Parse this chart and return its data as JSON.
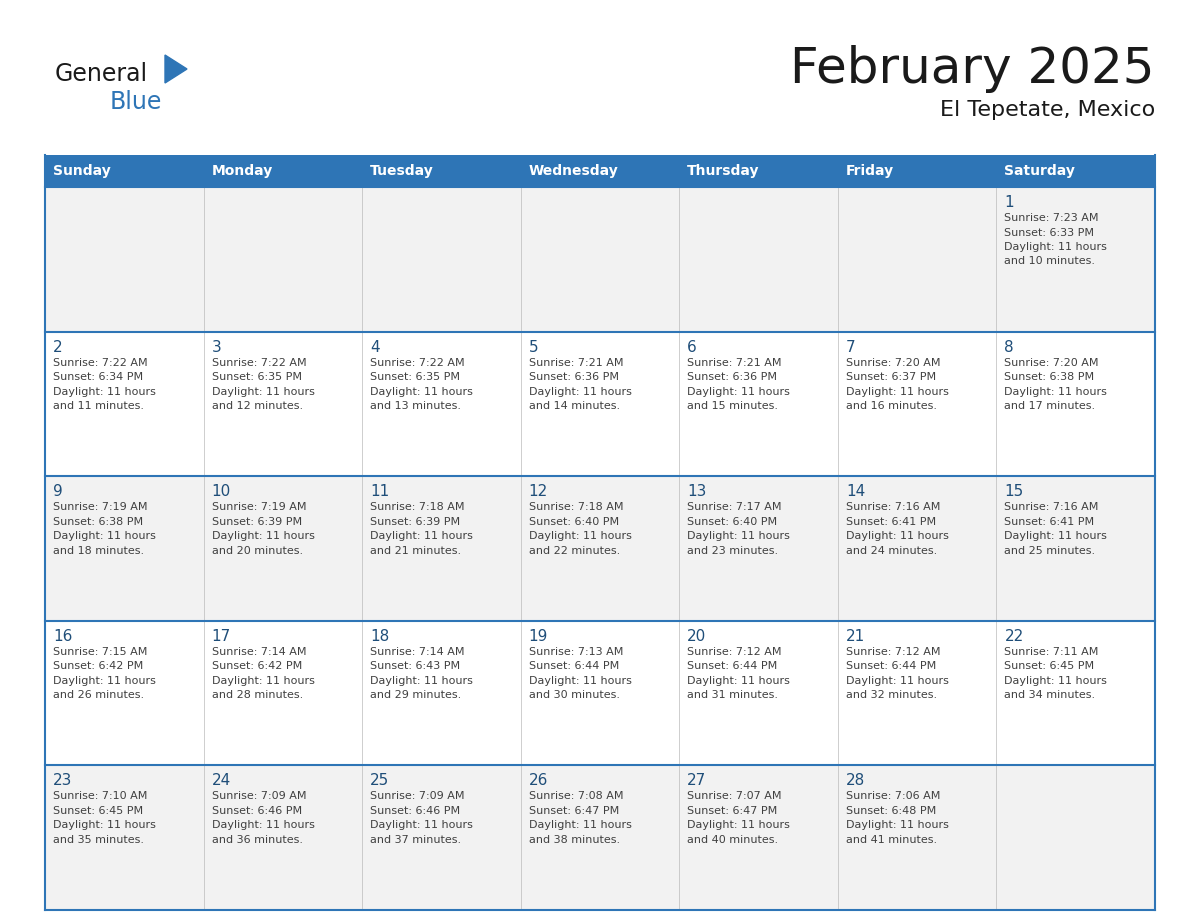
{
  "title": "February 2025",
  "subtitle": "El Tepetate, Mexico",
  "header_bg_color": "#2E75B6",
  "header_text_color": "#FFFFFF",
  "cell_border_color": "#2E75B6",
  "day_number_color": "#1F4E79",
  "text_color": "#404040",
  "bg_color": "#FFFFFF",
  "row0_bg": "#F2F2F2",
  "row_odd_bg": "#FFFFFF",
  "row_even_bg": "#F2F2F2",
  "days_of_week": [
    "Sunday",
    "Monday",
    "Tuesday",
    "Wednesday",
    "Thursday",
    "Friday",
    "Saturday"
  ],
  "calendar_data": [
    [
      null,
      null,
      null,
      null,
      null,
      null,
      {
        "day": 1,
        "sunrise": "7:23 AM",
        "sunset": "6:33 PM",
        "daylight": "11 hours\nand 10 minutes."
      }
    ],
    [
      {
        "day": 2,
        "sunrise": "7:22 AM",
        "sunset": "6:34 PM",
        "daylight": "11 hours\nand 11 minutes."
      },
      {
        "day": 3,
        "sunrise": "7:22 AM",
        "sunset": "6:35 PM",
        "daylight": "11 hours\nand 12 minutes."
      },
      {
        "day": 4,
        "sunrise": "7:22 AM",
        "sunset": "6:35 PM",
        "daylight": "11 hours\nand 13 minutes."
      },
      {
        "day": 5,
        "sunrise": "7:21 AM",
        "sunset": "6:36 PM",
        "daylight": "11 hours\nand 14 minutes."
      },
      {
        "day": 6,
        "sunrise": "7:21 AM",
        "sunset": "6:36 PM",
        "daylight": "11 hours\nand 15 minutes."
      },
      {
        "day": 7,
        "sunrise": "7:20 AM",
        "sunset": "6:37 PM",
        "daylight": "11 hours\nand 16 minutes."
      },
      {
        "day": 8,
        "sunrise": "7:20 AM",
        "sunset": "6:38 PM",
        "daylight": "11 hours\nand 17 minutes."
      }
    ],
    [
      {
        "day": 9,
        "sunrise": "7:19 AM",
        "sunset": "6:38 PM",
        "daylight": "11 hours\nand 18 minutes."
      },
      {
        "day": 10,
        "sunrise": "7:19 AM",
        "sunset": "6:39 PM",
        "daylight": "11 hours\nand 20 minutes."
      },
      {
        "day": 11,
        "sunrise": "7:18 AM",
        "sunset": "6:39 PM",
        "daylight": "11 hours\nand 21 minutes."
      },
      {
        "day": 12,
        "sunrise": "7:18 AM",
        "sunset": "6:40 PM",
        "daylight": "11 hours\nand 22 minutes."
      },
      {
        "day": 13,
        "sunrise": "7:17 AM",
        "sunset": "6:40 PM",
        "daylight": "11 hours\nand 23 minutes."
      },
      {
        "day": 14,
        "sunrise": "7:16 AM",
        "sunset": "6:41 PM",
        "daylight": "11 hours\nand 24 minutes."
      },
      {
        "day": 15,
        "sunrise": "7:16 AM",
        "sunset": "6:41 PM",
        "daylight": "11 hours\nand 25 minutes."
      }
    ],
    [
      {
        "day": 16,
        "sunrise": "7:15 AM",
        "sunset": "6:42 PM",
        "daylight": "11 hours\nand 26 minutes."
      },
      {
        "day": 17,
        "sunrise": "7:14 AM",
        "sunset": "6:42 PM",
        "daylight": "11 hours\nand 28 minutes."
      },
      {
        "day": 18,
        "sunrise": "7:14 AM",
        "sunset": "6:43 PM",
        "daylight": "11 hours\nand 29 minutes."
      },
      {
        "day": 19,
        "sunrise": "7:13 AM",
        "sunset": "6:44 PM",
        "daylight": "11 hours\nand 30 minutes."
      },
      {
        "day": 20,
        "sunrise": "7:12 AM",
        "sunset": "6:44 PM",
        "daylight": "11 hours\nand 31 minutes."
      },
      {
        "day": 21,
        "sunrise": "7:12 AM",
        "sunset": "6:44 PM",
        "daylight": "11 hours\nand 32 minutes."
      },
      {
        "day": 22,
        "sunrise": "7:11 AM",
        "sunset": "6:45 PM",
        "daylight": "11 hours\nand 34 minutes."
      }
    ],
    [
      {
        "day": 23,
        "sunrise": "7:10 AM",
        "sunset": "6:45 PM",
        "daylight": "11 hours\nand 35 minutes."
      },
      {
        "day": 24,
        "sunrise": "7:09 AM",
        "sunset": "6:46 PM",
        "daylight": "11 hours\nand 36 minutes."
      },
      {
        "day": 25,
        "sunrise": "7:09 AM",
        "sunset": "6:46 PM",
        "daylight": "11 hours\nand 37 minutes."
      },
      {
        "day": 26,
        "sunrise": "7:08 AM",
        "sunset": "6:47 PM",
        "daylight": "11 hours\nand 38 minutes."
      },
      {
        "day": 27,
        "sunrise": "7:07 AM",
        "sunset": "6:47 PM",
        "daylight": "11 hours\nand 40 minutes."
      },
      {
        "day": 28,
        "sunrise": "7:06 AM",
        "sunset": "6:48 PM",
        "daylight": "11 hours\nand 41 minutes."
      },
      null
    ]
  ],
  "n_cols": 7,
  "n_rows": 5,
  "logo_text_general": "General",
  "logo_text_blue": "Blue",
  "logo_triangle_color": "#2E75B6"
}
